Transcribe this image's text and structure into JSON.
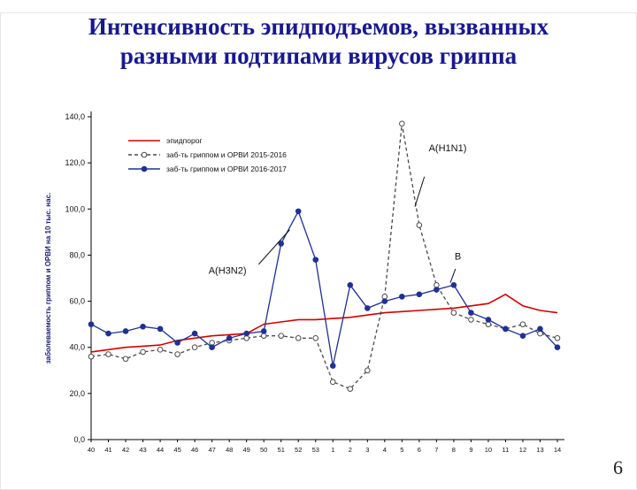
{
  "slide": {
    "title_line1": "Интенсивность эпидподъемов, вызванных",
    "title_line2": "разными подтипами вирусов гриппа",
    "page_number": "6"
  },
  "chart_data": {
    "type": "line",
    "title": "",
    "xlabel": "",
    "ylabel": "заболеваемость гриппом и ОРВИ на 10 тыс. нас.",
    "ylim": [
      0,
      140
    ],
    "ytick_step": 20,
    "ytick_labels": [
      "0,0",
      "20,0",
      "40,0",
      "60,0",
      "80,0",
      "100,0",
      "120,0",
      "140,0"
    ],
    "grid": false,
    "legend_position": "upper-left-inside",
    "categories": [
      "40",
      "41",
      "42",
      "43",
      "44",
      "45",
      "46",
      "47",
      "48",
      "49",
      "50",
      "51",
      "52",
      "53",
      "1",
      "2",
      "3",
      "4",
      "5",
      "6",
      "7",
      "8",
      "9",
      "10",
      "11",
      "12",
      "13",
      "14"
    ],
    "series": [
      {
        "name": "эпидпорог",
        "color": "#d40000",
        "style": "solid",
        "marker": "none",
        "values": [
          38,
          39,
          40,
          40.5,
          41,
          43,
          44,
          45,
          45.5,
          46,
          50,
          51,
          52,
          52,
          52.5,
          53,
          54,
          55,
          55.5,
          56,
          56.5,
          57,
          58,
          59,
          63,
          58,
          56,
          55
        ]
      },
      {
        "name": "заб-ть гриппом и ОРВИ 2015-2016",
        "color": "#4a4a4a",
        "style": "dashed",
        "marker": "open-circle",
        "values": [
          36,
          37,
          35,
          38,
          39,
          37,
          40,
          42,
          43,
          44,
          45,
          45,
          44,
          44,
          25,
          22,
          30,
          62,
          137,
          93,
          67,
          55,
          52,
          50,
          48,
          50,
          46,
          44
        ]
      },
      {
        "name": "заб-ть гриппом и ОРВИ 2016-2017",
        "color": "#1f3193",
        "style": "solid",
        "marker": "filled-circle",
        "values": [
          50,
          46,
          47,
          49,
          48,
          42,
          46,
          40,
          44,
          46,
          47,
          85,
          99,
          78,
          32,
          67,
          57,
          60,
          62,
          63,
          65,
          67,
          55,
          52,
          48,
          45,
          48,
          40
        ]
      }
    ],
    "annotations": [
      {
        "label": "A(H1N1)",
        "text_at": [
          19.55,
          125
        ],
        "line": [
          [
            19.3,
            114
          ],
          [
            18.75,
            101
          ]
        ]
      },
      {
        "label": "A(H3N2)",
        "text_at": [
          6.8,
          72
        ],
        "line": [
          [
            9.7,
            76
          ],
          [
            11.5,
            91
          ]
        ]
      },
      {
        "label": "B",
        "text_at": [
          21.05,
          78
        ],
        "line": [
          [
            21.1,
            74
          ],
          [
            20.8,
            68
          ]
        ]
      }
    ]
  }
}
